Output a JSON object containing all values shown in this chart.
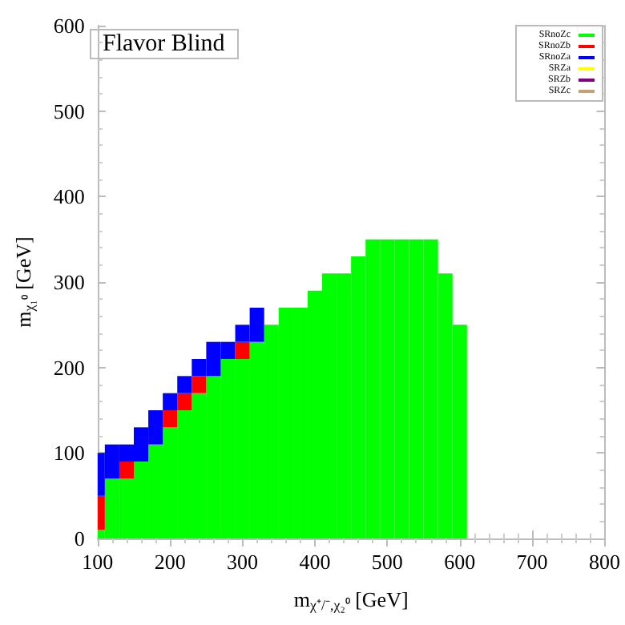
{
  "chart_data": {
    "type": "bar",
    "stacked": true,
    "title": "Flavor Blind",
    "xlabel": "m$_{χ⁺/⁻,χ₂⁰}$ [GeV]",
    "ylabel": "m$_{χ₁⁰}$ [GeV]",
    "x": [
      100,
      120,
      140,
      160,
      180,
      200,
      220,
      240,
      260,
      280,
      300,
      320,
      340,
      360,
      380,
      400,
      420,
      440,
      460,
      480,
      500,
      520,
      540,
      560,
      580,
      600
    ],
    "series": [
      {
        "name": "SRnoZc",
        "color": "#00ff00",
        "values": [
          10,
          70,
          70,
          90,
          110,
          130,
          150,
          170,
          190,
          210,
          210,
          230,
          250,
          270,
          270,
          290,
          310,
          310,
          330,
          350,
          350,
          350,
          350,
          350,
          310,
          250
        ]
      },
      {
        "name": "SRnoZb",
        "color": "#ff0000",
        "values": [
          40,
          null,
          20,
          null,
          null,
          20,
          20,
          20,
          null,
          null,
          20,
          null,
          null,
          null,
          null,
          null,
          null,
          null,
          null,
          null,
          null,
          null,
          null,
          null,
          null,
          null
        ]
      },
      {
        "name": "SRnoZa",
        "color": "#0000ff",
        "values": [
          50,
          40,
          20,
          40,
          40,
          20,
          20,
          20,
          40,
          20,
          20,
          40,
          null,
          null,
          null,
          null,
          null,
          null,
          null,
          null,
          null,
          null,
          null,
          null,
          null,
          null
        ]
      },
      {
        "name": "SRZa",
        "color": "#ffff00",
        "values": [
          null,
          null,
          null,
          null,
          null,
          null,
          null,
          null,
          null,
          null,
          null,
          null,
          null,
          null,
          null,
          null,
          null,
          null,
          null,
          null,
          null,
          null,
          null,
          null,
          null,
          null
        ]
      },
      {
        "name": "SRZb",
        "color": "#800080",
        "values": [
          null,
          null,
          null,
          null,
          null,
          null,
          null,
          null,
          null,
          null,
          null,
          null,
          null,
          null,
          null,
          null,
          null,
          null,
          null,
          null,
          null,
          null,
          null,
          null,
          null,
          null
        ]
      },
      {
        "name": "SRZc",
        "color": "#c8a078",
        "values": [
          null,
          null,
          null,
          null,
          null,
          null,
          null,
          null,
          null,
          null,
          null,
          null,
          null,
          null,
          null,
          null,
          null,
          null,
          null,
          null,
          null,
          null,
          null,
          null,
          null,
          null
        ]
      }
    ],
    "xlim": [
      100,
      800
    ],
    "xticks": [
      100,
      200,
      300,
      400,
      500,
      600,
      700,
      800
    ],
    "ylim": [
      0,
      600
    ],
    "yticks": [
      0,
      100,
      200,
      300,
      400,
      500,
      600
    ],
    "legend": "top right",
    "grid": false
  }
}
